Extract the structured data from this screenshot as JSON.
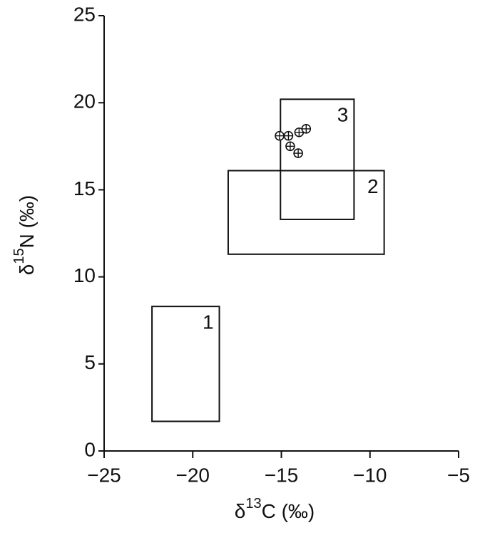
{
  "chart_data": {
    "type": "scatter",
    "x_label": {
      "prefix": "δ",
      "sup": "13",
      "suffix": "C (‰)"
    },
    "y_label": {
      "prefix": "δ",
      "sup": "15",
      "suffix": "N (‰)"
    },
    "xlim": [
      -25,
      -5
    ],
    "xticks": [
      {
        "value": -25,
        "label": "−25"
      },
      {
        "value": -20,
        "label": "−20"
      },
      {
        "value": -15,
        "label": "−15"
      },
      {
        "value": -10,
        "label": "−10"
      },
      {
        "value": -5,
        "label": "−5"
      }
    ],
    "ylim": [
      0,
      25
    ],
    "yticks": [
      0,
      5,
      10,
      15,
      20,
      25
    ],
    "x": [
      -15.1,
      -14.6,
      -14.0,
      -13.6,
      -14.5,
      -14.05
    ],
    "values": [
      18.1,
      18.1,
      18.3,
      18.5,
      17.5,
      17.1
    ],
    "regions": [
      {
        "label": "1",
        "x": [
          -22.3,
          -18.5
        ],
        "y": [
          1.7,
          8.3
        ]
      },
      {
        "label": "2",
        "x": [
          -18.0,
          -9.2
        ],
        "y": [
          11.3,
          16.1
        ]
      },
      {
        "label": "3",
        "x": [
          -15.05,
          -10.9
        ],
        "y": [
          13.3,
          20.2
        ]
      }
    ],
    "color": "#111111"
  }
}
